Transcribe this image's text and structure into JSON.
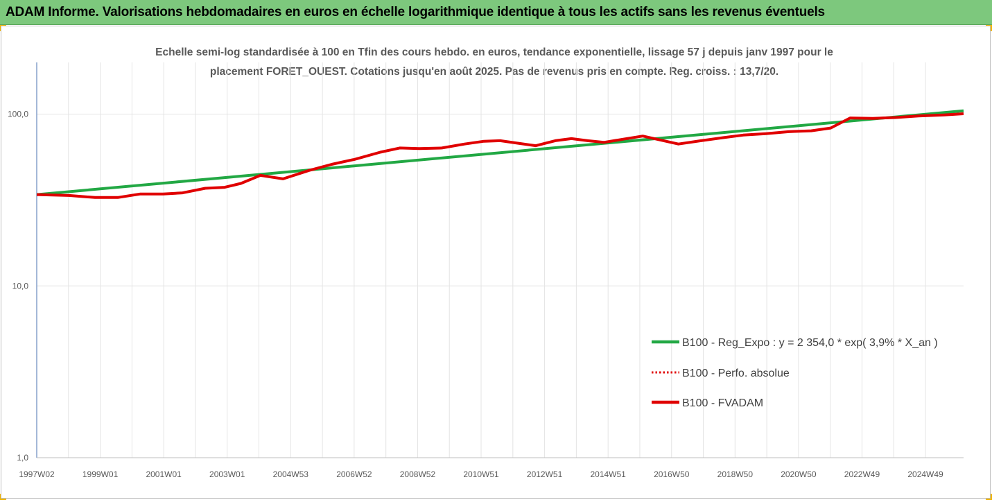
{
  "banner": {
    "title": "ADAM Informe. Valorisations hebdomadaires en euros en échelle logarithmique identique à tous les actifs sans les revenus éventuels",
    "background": "#7dc87d",
    "corner_color": "#f0b400"
  },
  "chart_data": {
    "type": "line",
    "title": "",
    "subtitle": [
      "Echelle semi-log standardisée à 100 en Tfin des cours hebdo. en euros, tendance exponentielle, lissage 57 j depuis janv 1997 pour le",
      "placement FORET_OUEST. Cotations jusqu'en août 2025. Pas de revenus pris en compte. Reg. croiss. : 13,7/20."
    ],
    "xlabel": "",
    "ylabel": "",
    "y_scale": "log",
    "ylim": [
      1,
      200
    ],
    "y_ticks": [
      1,
      10,
      100
    ],
    "y_tick_labels": [
      "1,0",
      "10,0",
      "100,0"
    ],
    "grid": "vertical",
    "x_tick_labels": [
      "1997W02",
      "1999W01",
      "2001W01",
      "2003W01",
      "2004W53",
      "2006W52",
      "2008W52",
      "2010W51",
      "2012W51",
      "2014W51",
      "2016W50",
      "2018W50",
      "2020W50",
      "2022W49",
      "2024W49"
    ],
    "x_range_years": [
      1997.0,
      2025.6
    ],
    "legend_position": "bottom-right",
    "series": [
      {
        "name": "B100 - Reg_Expo : y = 2 354,0 * exp( 3,9% *  X_an )",
        "color": "#22a844",
        "style": "solid",
        "x": [
          1997.0,
          2025.6
        ],
        "y": [
          34.0,
          104.5
        ]
      },
      {
        "name": "B100 - Perfo. absolue",
        "color": "#e00000",
        "style": "dotted",
        "x": [],
        "y": []
      },
      {
        "name": "B100 - FVADAM",
        "color": "#e00000",
        "style": "solid",
        "x": [
          1997.0,
          1998.0,
          1998.8,
          1999.5,
          2000.2,
          2000.9,
          2001.5,
          2002.2,
          2002.8,
          2003.3,
          2003.9,
          2004.6,
          2005.4,
          2006.1,
          2006.8,
          2007.6,
          2008.2,
          2008.8,
          2009.5,
          2010.2,
          2010.8,
          2011.3,
          2011.9,
          2012.4,
          2013.0,
          2013.5,
          2014.0,
          2014.5,
          2015.1,
          2015.7,
          2016.2,
          2016.8,
          2017.5,
          2018.2,
          2018.8,
          2019.5,
          2020.2,
          2020.9,
          2021.5,
          2022.1,
          2022.8,
          2023.5,
          2024.2,
          2025.0,
          2025.6
        ],
        "y": [
          34.0,
          33.6,
          32.7,
          32.7,
          34.3,
          34.3,
          34.8,
          37.0,
          37.5,
          39.5,
          44.0,
          42.0,
          47.0,
          51.0,
          54.5,
          60.0,
          63.5,
          63.0,
          63.5,
          67.0,
          69.5,
          70.0,
          67.5,
          65.5,
          70.0,
          72.0,
          70.0,
          68.5,
          71.5,
          74.5,
          71.0,
          67.0,
          70.0,
          73.0,
          75.5,
          77.0,
          79.0,
          80.0,
          83.0,
          95.0,
          94.5,
          95.5,
          97.5,
          99.0,
          100.5
        ]
      }
    ]
  }
}
